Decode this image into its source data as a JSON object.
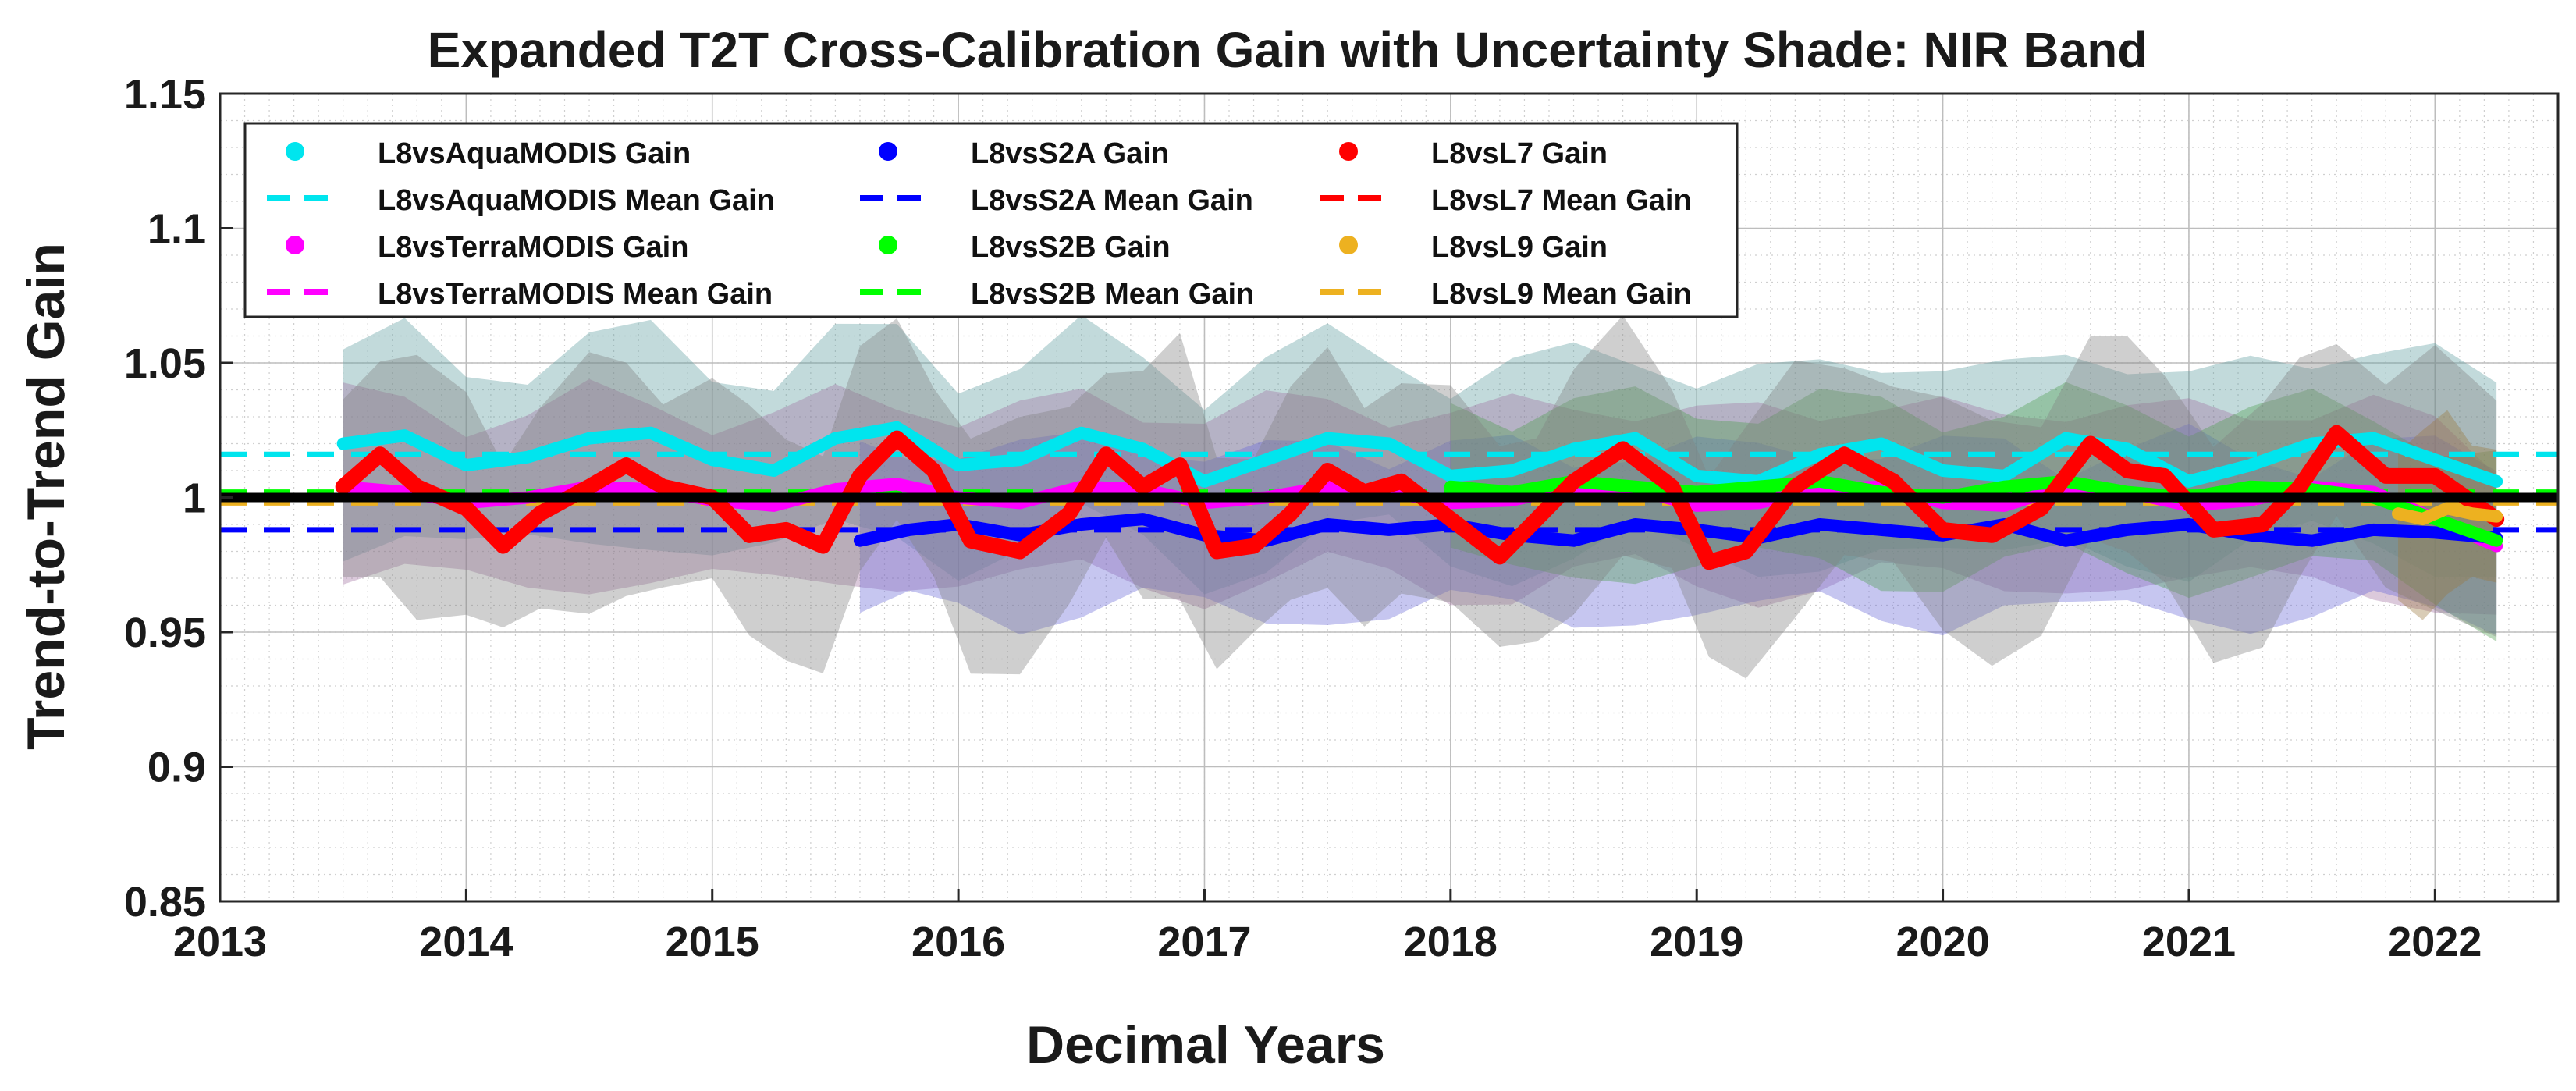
{
  "chart_data": {
    "type": "line",
    "title": "Expanded T2T Cross-Calibration Gain with Uncertainty Shade: NIR Band",
    "xlabel": "Decimal Years",
    "ylabel": "Trend-to-Trend Gain",
    "xlim": [
      2013,
      2022.5
    ],
    "ylim": [
      0.85,
      1.15
    ],
    "xticks": [
      2013,
      2014,
      2015,
      2016,
      2017,
      2018,
      2019,
      2020,
      2021,
      2022
    ],
    "xtick_labels": [
      "2013",
      "2014",
      "2015",
      "2016",
      "2017",
      "2018",
      "2019",
      "2020",
      "2021",
      "2022"
    ],
    "yticks": [
      0.85,
      0.9,
      0.95,
      1,
      1.05,
      1.1,
      1.15
    ],
    "ytick_labels": [
      "0.85",
      "0.9",
      "0.95",
      "1",
      "1.05",
      "1.1",
      "1.15"
    ],
    "grid": "on (major and minor, dotted)",
    "legend_position": "top-left",
    "reference_line": {
      "y": 1.0,
      "color": "#000000"
    },
    "series": [
      {
        "name": "L8vsAquaMODIS Gain",
        "mean_label": "L8vsAquaMODIS Mean Gain",
        "color": "#00e5ee",
        "shade_color": "#5f9ea0",
        "mean": 1.016,
        "x": [
          2013.5,
          2013.75,
          2014.0,
          2014.25,
          2014.5,
          2014.75,
          2015.0,
          2015.25,
          2015.5,
          2015.75,
          2016.0,
          2016.25,
          2016.5,
          2016.75,
          2017.0,
          2017.25,
          2017.5,
          2017.75,
          2018.0,
          2018.25,
          2018.5,
          2018.75,
          2019.0,
          2019.25,
          2019.5,
          2019.75,
          2020.0,
          2020.25,
          2020.5,
          2020.75,
          2021.0,
          2021.25,
          2021.5,
          2021.75,
          2022.0,
          2022.25
        ],
        "y": [
          1.02,
          1.023,
          1.012,
          1.015,
          1.022,
          1.024,
          1.014,
          1.01,
          1.022,
          1.026,
          1.012,
          1.014,
          1.024,
          1.018,
          1.006,
          1.014,
          1.022,
          1.02,
          1.008,
          1.01,
          1.018,
          1.022,
          1.008,
          1.006,
          1.016,
          1.02,
          1.01,
          1.008,
          1.022,
          1.018,
          1.006,
          1.012,
          1.02,
          1.022,
          1.014,
          1.006
        ],
        "band": 0.035
      },
      {
        "name": "L8vsTerraMODIS Gain",
        "mean_label": "L8vsTerraMODIS Mean Gain",
        "color": "#ff00ff",
        "shade_color": "#a070a0",
        "mean": 1.001,
        "x": [
          2013.5,
          2013.75,
          2014.0,
          2014.25,
          2014.5,
          2014.75,
          2015.0,
          2015.25,
          2015.5,
          2015.75,
          2016.0,
          2016.25,
          2016.5,
          2016.75,
          2017.0,
          2017.25,
          2017.5,
          2017.75,
          2018.0,
          2018.25,
          2018.5,
          2018.75,
          2019.0,
          2019.25,
          2019.5,
          2019.75,
          2020.0,
          2020.25,
          2020.5,
          2020.75,
          2021.0,
          2021.25,
          2021.5,
          2021.75,
          2022.0,
          2022.25
        ],
        "y": [
          1.004,
          1.002,
          0.998,
          1.0,
          1.004,
          1.003,
          0.999,
          0.997,
          1.003,
          1.005,
          1.0,
          0.998,
          1.004,
          1.003,
          0.998,
          1.0,
          1.004,
          1.002,
          0.998,
          0.999,
          1.004,
          1.003,
          0.997,
          0.998,
          1.003,
          1.004,
          0.998,
          0.997,
          1.004,
          1.002,
          0.997,
          0.999,
          1.004,
          1.002,
          0.992,
          0.982
        ],
        "band": 0.032
      },
      {
        "name": "L8vsS2A Gain",
        "mean_label": "L8vsS2A Mean Gain",
        "color": "#0000ff",
        "shade_color": "#6a6ad8",
        "mean": 0.988,
        "x": [
          2015.6,
          2015.8,
          2016.0,
          2016.25,
          2016.5,
          2016.75,
          2017.0,
          2017.25,
          2017.5,
          2017.75,
          2018.0,
          2018.25,
          2018.5,
          2018.75,
          2019.0,
          2019.25,
          2019.5,
          2019.75,
          2020.0,
          2020.25,
          2020.5,
          2020.75,
          2021.0,
          2021.25,
          2021.5,
          2021.75,
          2022.0,
          2022.25
        ],
        "y": [
          0.984,
          0.988,
          0.99,
          0.986,
          0.99,
          0.992,
          0.986,
          0.984,
          0.99,
          0.988,
          0.99,
          0.986,
          0.984,
          0.99,
          0.988,
          0.985,
          0.99,
          0.988,
          0.986,
          0.99,
          0.984,
          0.988,
          0.99,
          0.986,
          0.984,
          0.988,
          0.987,
          0.985
        ],
        "band": 0.03
      },
      {
        "name": "L8vsS2B Gain",
        "mean_label": "L8vsS2B Mean Gain",
        "color": "#00ff00",
        "shade_color": "#4f9f4f",
        "mean": 1.002,
        "x": [
          2018.0,
          2018.25,
          2018.5,
          2018.75,
          2019.0,
          2019.25,
          2019.5,
          2019.75,
          2020.0,
          2020.25,
          2020.5,
          2020.75,
          2021.0,
          2021.25,
          2021.5,
          2021.75,
          2022.0,
          2022.25
        ],
        "y": [
          1.004,
          1.002,
          1.006,
          1.004,
          1.002,
          1.004,
          1.006,
          1.002,
          1.0,
          1.004,
          1.006,
          1.002,
          1.0,
          1.004,
          1.003,
          1.0,
          0.992,
          0.984
        ],
        "band": 0.03
      },
      {
        "name": "L8vsL7 Gain",
        "mean_label": "L8vsL7 Mean Gain",
        "color": "#ff0000",
        "shade_color": "#808080",
        "mean": 1.0,
        "x": [
          2013.5,
          2013.65,
          2013.8,
          2014.0,
          2014.15,
          2014.3,
          2014.5,
          2014.65,
          2014.8,
          2015.0,
          2015.15,
          2015.3,
          2015.45,
          2015.6,
          2015.75,
          2015.9,
          2016.05,
          2016.25,
          2016.45,
          2016.6,
          2016.75,
          2016.9,
          2017.05,
          2017.2,
          2017.35,
          2017.5,
          2017.65,
          2017.8,
          2018.0,
          2018.2,
          2018.35,
          2018.5,
          2018.7,
          2018.9,
          2019.05,
          2019.2,
          2019.4,
          2019.6,
          2019.8,
          2020.0,
          2020.2,
          2020.4,
          2020.6,
          2020.75,
          2020.9,
          2021.1,
          2021.3,
          2021.45,
          2021.6,
          2021.8,
          2022.0,
          2022.25
        ],
        "y": [
          1.004,
          1.016,
          1.004,
          0.996,
          0.982,
          0.994,
          1.004,
          1.012,
          1.004,
          1.0,
          0.986,
          0.988,
          0.982,
          1.008,
          1.022,
          1.01,
          0.984,
          0.98,
          0.994,
          1.016,
          1.004,
          1.012,
          0.98,
          0.982,
          0.994,
          1.01,
          1.002,
          1.006,
          0.992,
          0.978,
          0.992,
          1.006,
          1.018,
          1.004,
          0.976,
          0.98,
          1.004,
          1.016,
          1.006,
          0.988,
          0.986,
          0.996,
          1.02,
          1.01,
          1.008,
          0.988,
          0.99,
          1.004,
          1.024,
          1.008,
          1.008,
          0.992
        ],
        "band": 0.04
      },
      {
        "name": "L8vsL9 Gain",
        "mean_label": "L8vsL9 Mean Gain",
        "color": "#edb120",
        "shade_color": "#9a7a40",
        "mean": 0.998,
        "x": [
          2021.85,
          2021.95,
          2022.05,
          2022.15,
          2022.25
        ],
        "y": [
          0.994,
          0.992,
          0.996,
          0.994,
          0.993
        ],
        "band": 0.03
      }
    ]
  }
}
